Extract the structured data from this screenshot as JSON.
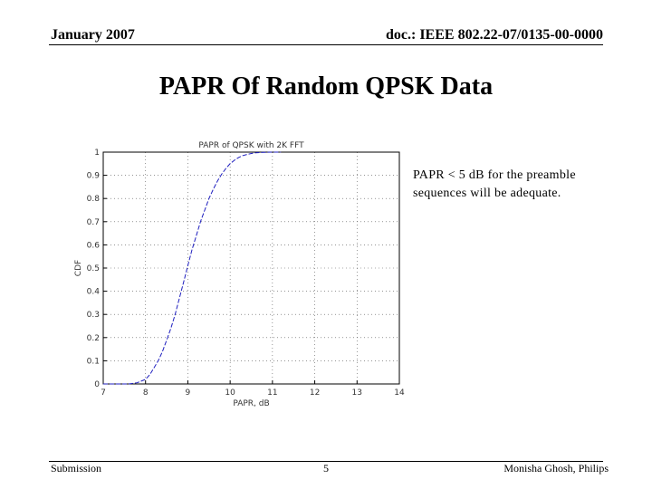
{
  "header": {
    "date": "January 2007",
    "doc_id": "doc.: IEEE 802.22-07/0135-00-0000"
  },
  "slide": {
    "title": "PAPR Of Random QPSK Data",
    "note": "PAPR < 5 dB for the preamble sequences will be adequate."
  },
  "footer": {
    "left": "Submission",
    "page": "5",
    "right": "Monisha Ghosh, Philips"
  },
  "chart_data": {
    "type": "line",
    "title": "PAPR of QPSK with 2K FFT",
    "xlabel": "PAPR, dB",
    "ylabel": "CDF",
    "xlim": [
      7,
      14
    ],
    "ylim": [
      0,
      1
    ],
    "xticks": [
      "7",
      "8",
      "9",
      "10",
      "11",
      "12",
      "13",
      "14"
    ],
    "yticks": [
      "0",
      "0.1",
      "0.2",
      "0.3",
      "0.4",
      "0.5",
      "0.6",
      "0.7",
      "0.8",
      "0.9",
      "1"
    ],
    "grid": true,
    "line_color": "#1f1fbf",
    "series": [
      {
        "x": [
          7.0,
          7.6,
          7.8,
          8.0,
          8.1,
          8.2,
          8.3,
          8.4,
          8.5,
          8.6,
          8.7,
          8.8,
          8.9,
          9.0,
          9.1,
          9.2,
          9.3,
          9.4,
          9.5,
          9.6,
          9.7,
          9.8,
          9.9,
          10.0,
          10.1,
          10.2,
          10.3,
          10.4,
          10.5,
          10.6,
          10.7,
          10.8,
          11.0,
          11.2
        ],
        "y": [
          0.0,
          0.0,
          0.005,
          0.02,
          0.04,
          0.07,
          0.1,
          0.14,
          0.19,
          0.24,
          0.3,
          0.37,
          0.44,
          0.51,
          0.58,
          0.64,
          0.7,
          0.75,
          0.8,
          0.84,
          0.875,
          0.905,
          0.93,
          0.95,
          0.965,
          0.977,
          0.985,
          0.99,
          0.994,
          0.997,
          0.998,
          0.999,
          1.0,
          1.0
        ]
      }
    ]
  }
}
